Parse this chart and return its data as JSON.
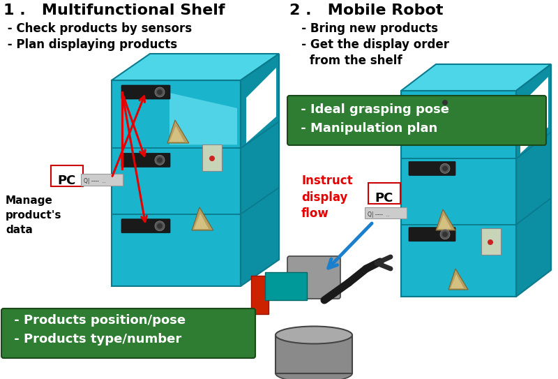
{
  "bg_color": "#ffffff",
  "title_left": "1 .   Multifunctional Shelf",
  "title_right": "2 .   Mobile Robot",
  "subtitle_left_1": " - Check products by sensors",
  "subtitle_left_2": " - Plan displaying products",
  "subtitle_right_1": "   - Bring new products",
  "subtitle_right_2": "   - Get the display order",
  "subtitle_right_3": "     from the shelf",
  "green_box_left": " - Products position/pose\n - Products type/number",
  "green_box_right": " - Ideal grasping pose\n - Manipulation plan",
  "pc_label": "PC",
  "manage_label": "Manage\nproduct's\ndata",
  "instruct_label": "Instruct\ndisplay\nflow",
  "shelf_front": "#1ab4cc",
  "shelf_top": "#4dd6e8",
  "shelf_side": "#0d8fa3",
  "shelf_line": "#0a7a8c",
  "green_color": "#2e7d32",
  "red_color": "#e60000",
  "blue_arrow_color": "#1a7fcc",
  "sensor_color": "#1a1a1a",
  "robot_gray": "#8a8a8a",
  "robot_dark": "#444444",
  "teal_color": "#009999",
  "red_box_color": "#cc2200"
}
